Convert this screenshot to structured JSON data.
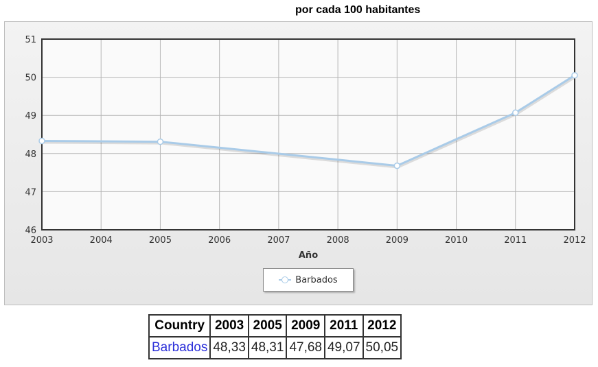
{
  "chart_data": {
    "type": "line",
    "title": "por cada 100 habitantes",
    "xlabel": "Año",
    "ylabel": "",
    "x": [
      2003,
      2005,
      2009,
      2011,
      2012
    ],
    "x_ticks": [
      "2003",
      "2004",
      "2005",
      "2006",
      "2007",
      "2008",
      "2009",
      "2010",
      "2011",
      "2012"
    ],
    "y_ticks": [
      "46",
      "47",
      "48",
      "49",
      "50",
      "51"
    ],
    "xlim": [
      2003,
      2012
    ],
    "ylim": [
      46,
      51
    ],
    "grid": true,
    "legend_position": "bottom",
    "series": [
      {
        "name": "Barbados",
        "values": [
          48.33,
          48.31,
          47.68,
          49.07,
          50.05
        ],
        "color": "#a9cbe8"
      }
    ]
  },
  "table": {
    "headers": [
      "Country",
      "2003",
      "2005",
      "2009",
      "2011",
      "2012"
    ],
    "rows": [
      [
        "Barbados",
        "48,33",
        "48,31",
        "47,68",
        "49,07",
        "50,05"
      ]
    ]
  }
}
